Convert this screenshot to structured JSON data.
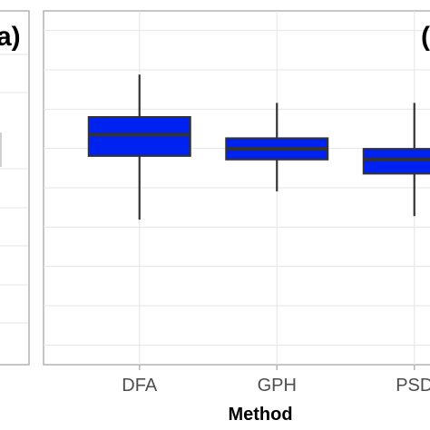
{
  "panels": {
    "left_label": "a)",
    "right_label": "("
  },
  "chart_data": {
    "type": "box",
    "xlabel": "Method",
    "categories": [
      "DFA",
      "GPH",
      "PSD"
    ],
    "ylim": [
      0,
      1
    ],
    "y_ticks_count": 9,
    "grid": true,
    "box_fill_color": "#0022f0",
    "box_line_color": "#333333",
    "boxes": [
      {
        "category": "DFA",
        "whisker_low": 0.41,
        "q1": 0.59,
        "median": 0.65,
        "q3": 0.7,
        "whisker_high": 0.82
      },
      {
        "category": "GPH",
        "whisker_low": 0.49,
        "q1": 0.58,
        "median": 0.61,
        "q3": 0.64,
        "whisker_high": 0.74
      },
      {
        "category": "PSD",
        "whisker_low": 0.42,
        "q1": 0.54,
        "median": 0.58,
        "q3": 0.61,
        "whisker_high": 0.74
      }
    ]
  }
}
